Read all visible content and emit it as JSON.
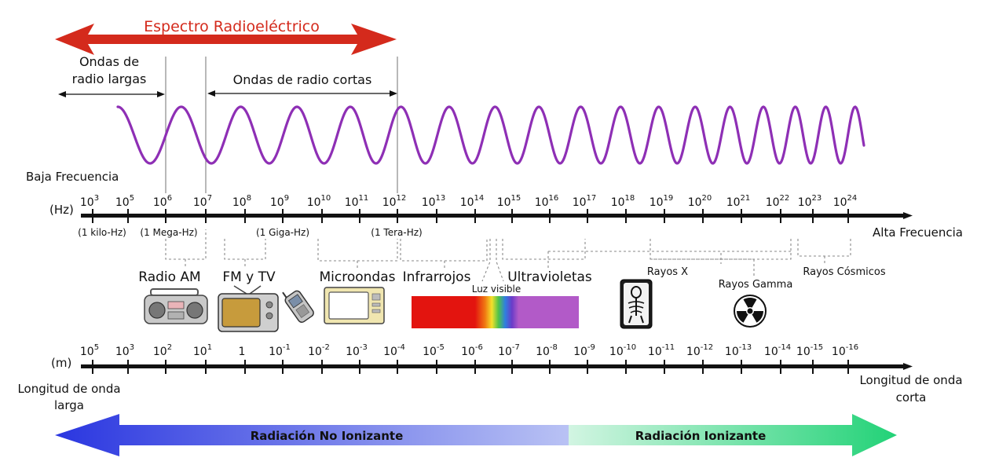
{
  "title": "Espectro Radioeléctrico",
  "long_radio_label": [
    "Ondas de",
    "radio largas"
  ],
  "short_radio_label": "Ondas de radio cortas",
  "low_freq_label": "Baja Frecuencia",
  "high_freq_label": "Alta Frecuencia",
  "freq_unit": "(Hz)",
  "wave_unit": "(m)",
  "freq_ticks": [
    {
      "base": "10",
      "exp": "3"
    },
    {
      "base": "10",
      "exp": "5"
    },
    {
      "base": "10",
      "exp": "6"
    },
    {
      "base": "10",
      "exp": "7"
    },
    {
      "base": "10",
      "exp": "8"
    },
    {
      "base": "10",
      "exp": "9"
    },
    {
      "base": "10",
      "exp": "10"
    },
    {
      "base": "10",
      "exp": "11"
    },
    {
      "base": "10",
      "exp": "12"
    },
    {
      "base": "10",
      "exp": "13"
    },
    {
      "base": "10",
      "exp": "14"
    },
    {
      "base": "10",
      "exp": "15"
    },
    {
      "base": "10",
      "exp": "16"
    },
    {
      "base": "10",
      "exp": "17"
    },
    {
      "base": "10",
      "exp": "18"
    },
    {
      "base": "10",
      "exp": "19"
    },
    {
      "base": "10",
      "exp": "20"
    },
    {
      "base": "10",
      "exp": "21"
    },
    {
      "base": "10",
      "exp": "22"
    },
    {
      "base": "10",
      "exp": "23"
    },
    {
      "base": "10",
      "exp": "24"
    }
  ],
  "freq_notes": [
    "(1 kilo-Hz)",
    "(1 Mega-Hz)",
    "(1 Giga-Hz)",
    "(1 Tera-Hz)"
  ],
  "wave_ticks": [
    {
      "base": "10",
      "exp": "5"
    },
    {
      "base": "10",
      "exp": "3"
    },
    {
      "base": "10",
      "exp": "2"
    },
    {
      "base": "10",
      "exp": "1"
    },
    {
      "base": "1",
      "exp": ""
    },
    {
      "base": "10",
      "exp": "-1"
    },
    {
      "base": "10",
      "exp": "-2"
    },
    {
      "base": "10",
      "exp": "-3"
    },
    {
      "base": "10",
      "exp": "-4"
    },
    {
      "base": "10",
      "exp": "-5"
    },
    {
      "base": "10",
      "exp": "-6"
    },
    {
      "base": "10",
      "exp": "-7"
    },
    {
      "base": "10",
      "exp": "-8"
    },
    {
      "base": "10",
      "exp": "-9"
    },
    {
      "base": "10",
      "exp": "-10"
    },
    {
      "base": "10",
      "exp": "-11"
    },
    {
      "base": "10",
      "exp": "-12"
    },
    {
      "base": "10",
      "exp": "-13"
    },
    {
      "base": "10",
      "exp": "-14"
    },
    {
      "base": "10",
      "exp": "-15"
    },
    {
      "base": "10",
      "exp": "-16"
    }
  ],
  "regions": {
    "radio_am": "Radio AM",
    "fm_tv": "FM y TV",
    "microwaves": "Microondas",
    "infrared": "Infrarrojos",
    "visible": "Luz visible",
    "ultraviolet": "Ultravioletas",
    "xrays": "Rayos X",
    "gamma": "Rayos Gamma",
    "cosmic": "Rayos Cósmicos"
  },
  "long_wave_label": [
    "Longitud de onda",
    "larga"
  ],
  "short_wave_label": [
    "Longitud de onda",
    "corta"
  ],
  "non_ionizing": "Radiación No Ionizante",
  "ionizing": "Radiación Ionizante",
  "icons": [
    "radio-icon",
    "tv-icon",
    "cellphone-icon",
    "microwave-oven-icon",
    "xray-icon",
    "radiation-icon"
  ],
  "colors": {
    "title": "#d42a1c",
    "wave": "#8e2fb5",
    "non_ionizing_start": "#2a36e0",
    "non_ionizing_end": "#b9c2f4",
    "ionizing_start": "#d2f5e2",
    "ionizing_end": "#22d277"
  }
}
